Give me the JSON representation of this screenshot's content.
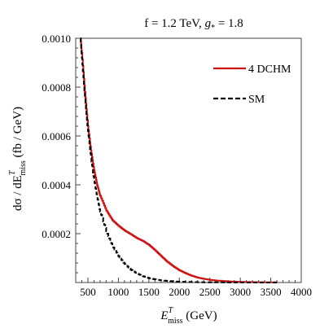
{
  "chart_data": {
    "type": "line",
    "title": {
      "prefix": "f = 1.2 TeV, ",
      "g": "g",
      "sub": "*",
      "suffix": " = 1.8"
    },
    "xlabel": {
      "main": "E",
      "sup": "T",
      "sub": "miss",
      "unit": " (GeV)"
    },
    "ylabel": {
      "main": "dσ / dE",
      "sup": "T",
      "sub": "miss",
      "unit": " (fb / GeV)"
    },
    "xlim": [
      300,
      4000
    ],
    "ylim": [
      0,
      0.001
    ],
    "xticks": [
      500,
      1000,
      1500,
      2000,
      2500,
      3000,
      3500,
      4000
    ],
    "xtick_labels": [
      "500",
      "1000",
      "1500",
      "2000",
      "2500",
      "3000",
      "3500",
      "4000"
    ],
    "yticks": [
      0.0002,
      0.0004,
      0.0006,
      0.0008,
      0.001
    ],
    "ytick_labels": [
      "0.0002",
      "0.0004",
      "0.0006",
      "0.0008",
      "0.0010"
    ],
    "legend_position": "top-right",
    "series": [
      {
        "name": "4 DCHM",
        "color": "#cc1111",
        "style": "solid",
        "x": [
          380,
          400,
          450,
          500,
          550,
          600,
          650,
          700,
          800,
          900,
          1000,
          1100,
          1200,
          1300,
          1400,
          1500,
          1600,
          1700,
          1800,
          1900,
          2000,
          2100,
          2200,
          2300,
          2400,
          2500,
          2600,
          2800,
          3000,
          3200,
          3400,
          3600
        ],
        "y": [
          0.001,
          0.00094,
          0.00078,
          0.00064,
          0.00054,
          0.00046,
          0.0004,
          0.000355,
          0.000295,
          0.000255,
          0.000232,
          0.000213,
          0.000198,
          0.000182,
          0.00017,
          0.000154,
          0.000132,
          0.000108,
          8.5e-05,
          6.6e-05,
          5e-05,
          3.8e-05,
          2.8e-05,
          2e-05,
          1.5e-05,
          1.1e-05,
          8e-06,
          4.5e-06,
          2.5e-06,
          1.5e-06,
          1e-06,
          5e-07
        ]
      },
      {
        "name": "SM",
        "color": "#000000",
        "style": "dashed",
        "x": [
          380,
          400,
          450,
          500,
          550,
          600,
          650,
          700,
          800,
          900,
          1000,
          1100,
          1200,
          1300,
          1400,
          1500,
          1600,
          1700,
          1800,
          1900,
          2000,
          2200,
          2400,
          2600,
          2800,
          3000,
          3200,
          3400,
          3600
        ],
        "y": [
          0.001,
          0.00092,
          0.00076,
          0.00062,
          0.00051,
          0.00042,
          0.00035,
          0.00029,
          0.00021,
          0.00015,
          0.000108,
          7.6e-05,
          5.3e-05,
          3.7e-05,
          2.6e-05,
          1.8e-05,
          1.3e-05,
          9e-06,
          6.5e-06,
          4.7e-06,
          3.4e-06,
          1.9e-06,
          1.1e-06,
          7e-07,
          4e-07,
          3e-07,
          2e-07,
          1e-07,
          1e-07
        ]
      }
    ]
  }
}
